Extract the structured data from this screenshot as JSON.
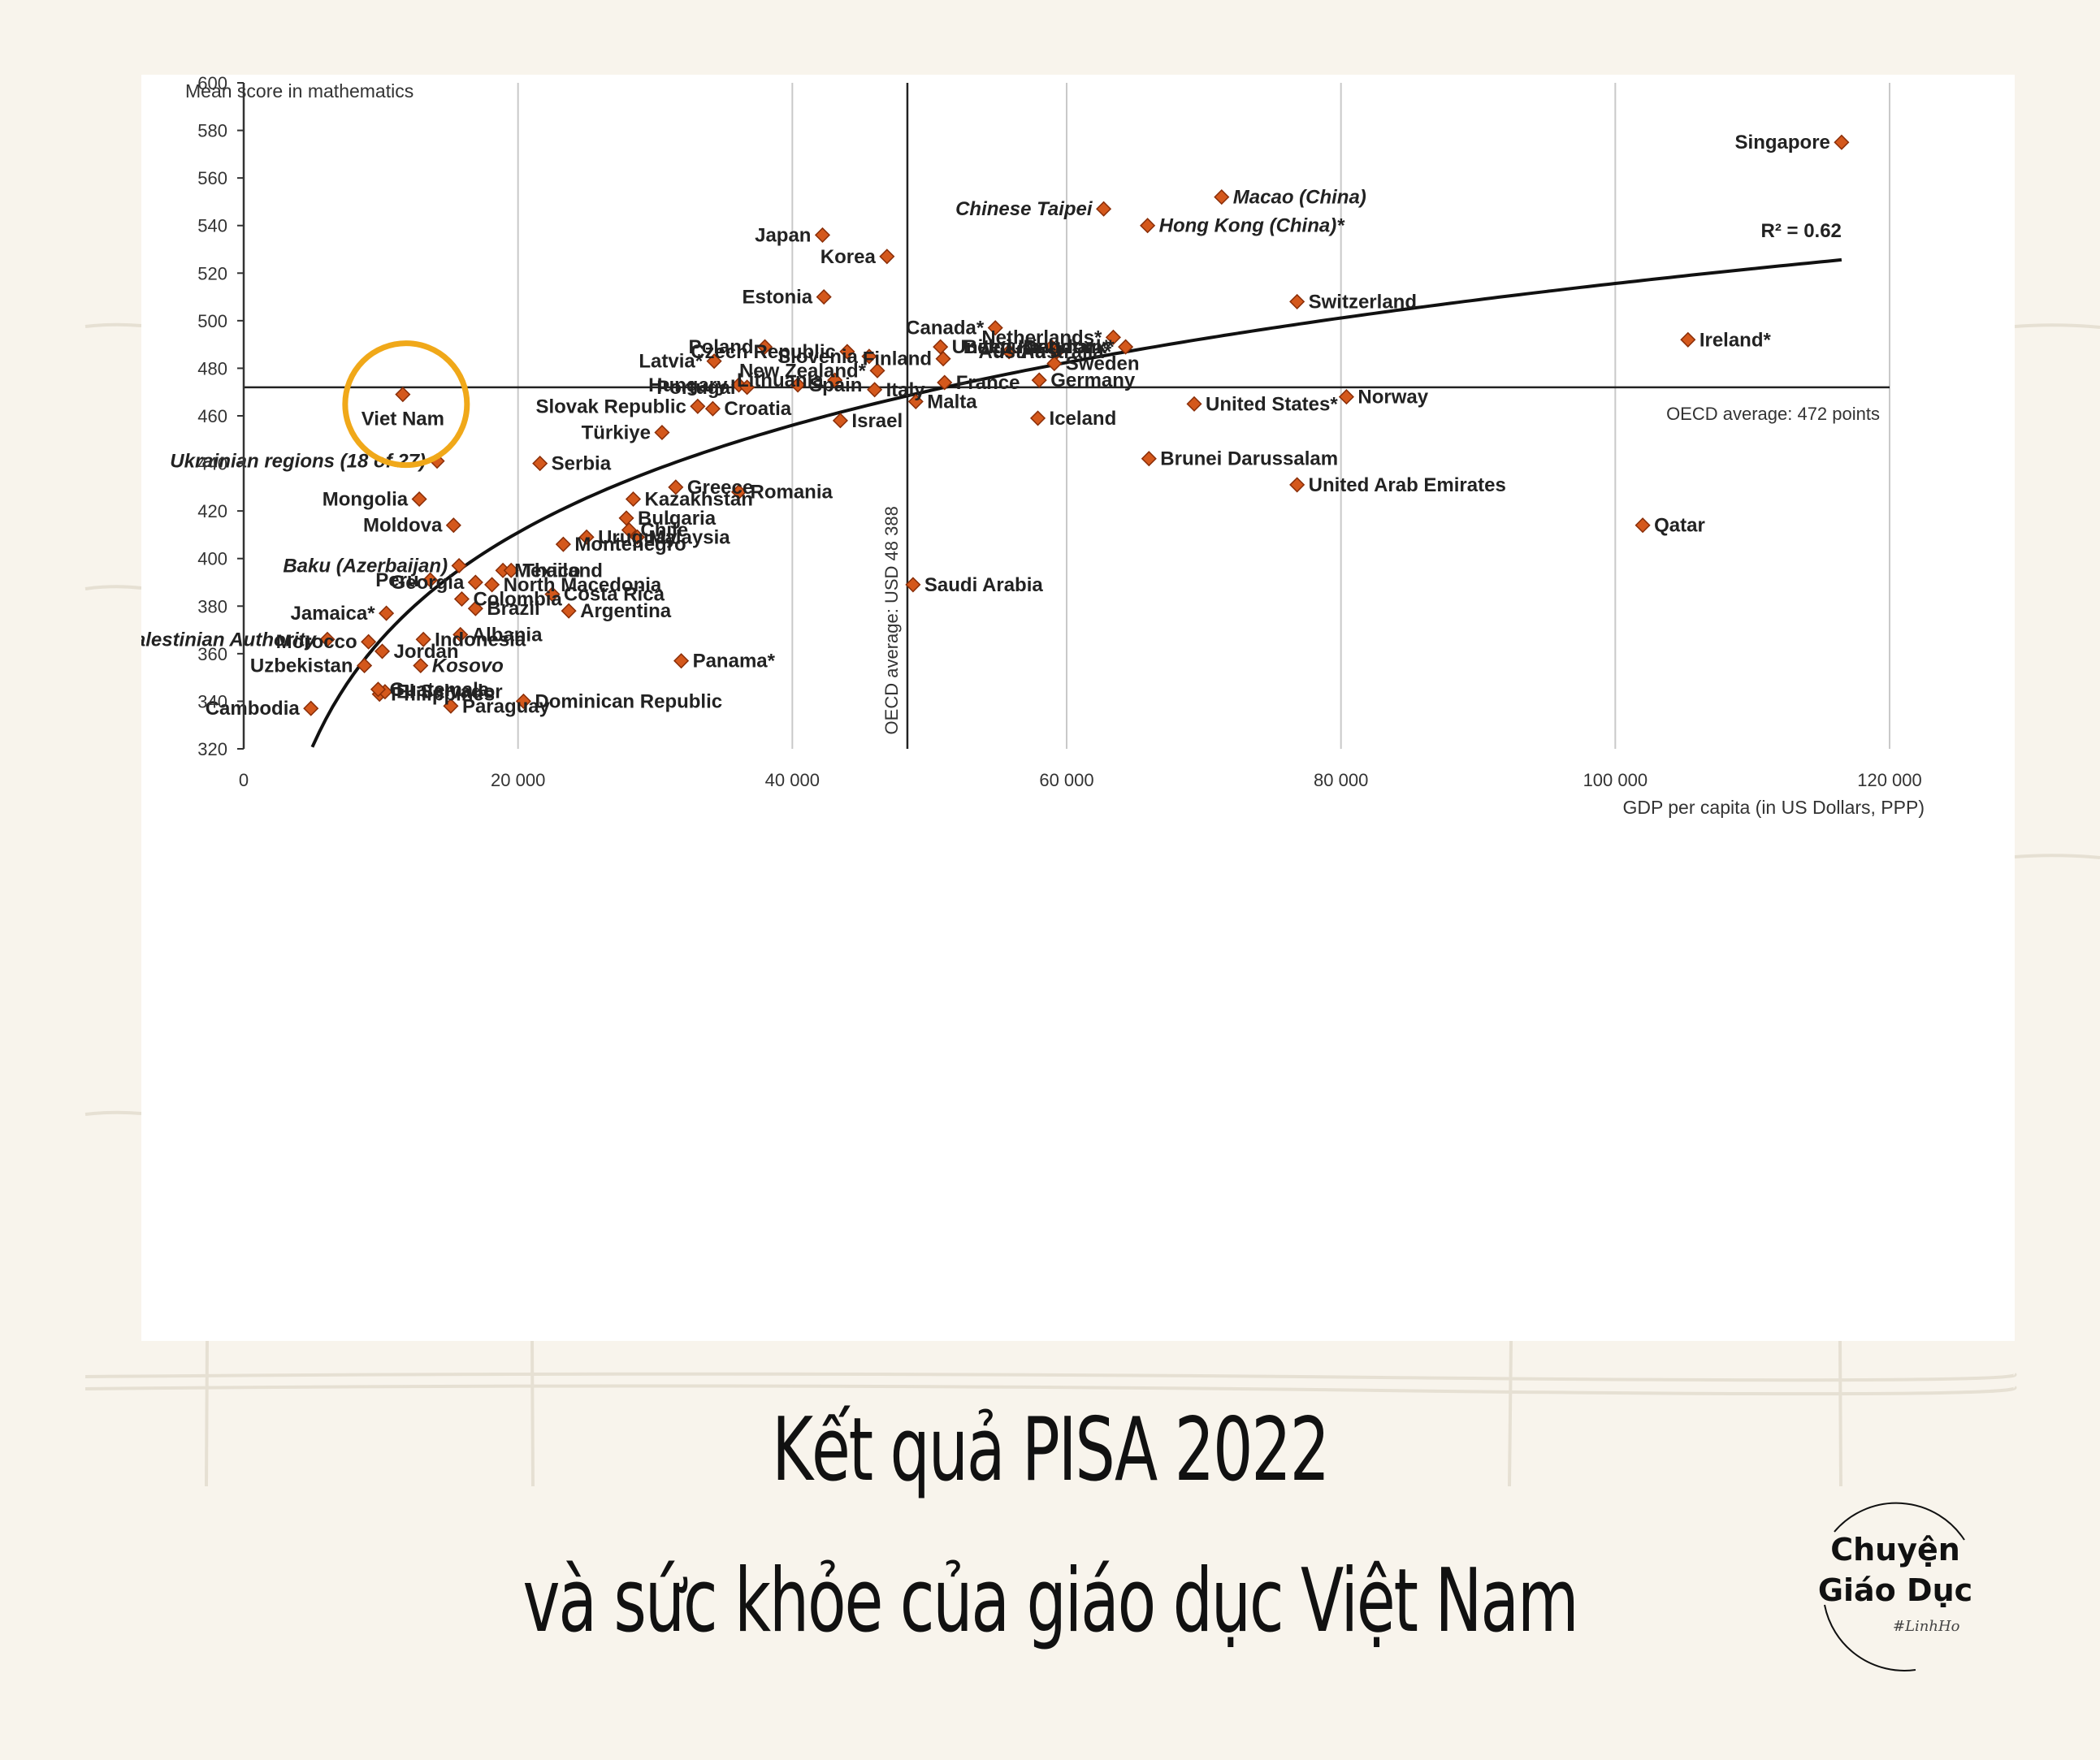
{
  "chart_data": {
    "type": "scatter",
    "ylabel": "Mean score in mathematics",
    "xlabel": "GDP per capita (in US Dollars, PPP)",
    "xlim": [
      0,
      120000
    ],
    "ylim": [
      320,
      600
    ],
    "x_ticks": [
      0,
      20000,
      40000,
      60000,
      80000,
      100000,
      120000
    ],
    "x_tick_labels": [
      "0",
      "20 000",
      "40 000",
      "60 000",
      "80 000",
      "100 000",
      "120 000"
    ],
    "y_ticks": [
      320,
      340,
      360,
      380,
      400,
      420,
      440,
      460,
      480,
      500,
      520,
      540,
      560,
      580,
      600
    ],
    "y_tick_labels": [
      "320",
      "340",
      "360",
      "380",
      "400",
      "420",
      "440",
      "460",
      "480",
      "500",
      "520",
      "540",
      "560",
      "580",
      "600"
    ],
    "grid": "vertical",
    "marker_color": "#d4581c",
    "oecd_average_score": 472,
    "oecd_average_label": "OECD average: 472 points",
    "oecd_average_gdp": 48388,
    "oecd_gdp_label": "OECD average: USD 48 388",
    "r_squared_label": "R² = 0.62",
    "trend": "logarithmic",
    "highlight": "Viet Nam",
    "highlight_color": "#f0a819",
    "points": [
      {
        "label": "Singapore",
        "x": 116500,
        "y": 575
      },
      {
        "label": "Chinese Taipei",
        "x": 62700,
        "y": 547,
        "italic": true
      },
      {
        "label": "Macao (China)",
        "x": 71300,
        "y": 552,
        "italic": true
      },
      {
        "label": "Hong Kong (China)*",
        "x": 65900,
        "y": 540,
        "italic": true
      },
      {
        "label": "Japan",
        "x": 42200,
        "y": 536
      },
      {
        "label": "Korea",
        "x": 46900,
        "y": 527
      },
      {
        "label": "Switzerland",
        "x": 76800,
        "y": 508
      },
      {
        "label": "Ireland*",
        "x": 105300,
        "y": 492
      },
      {
        "label": "Estonia",
        "x": 42300,
        "y": 510
      },
      {
        "label": "New Zealand*",
        "x": 46200,
        "y": 479
      },
      {
        "label": "Czech Republic",
        "x": 44000,
        "y": 487
      },
      {
        "label": "Slovenia",
        "x": 45600,
        "y": 485
      },
      {
        "label": "Poland",
        "x": 38000,
        "y": 489
      },
      {
        "label": "Latvia*",
        "x": 34300,
        "y": 483
      },
      {
        "label": "Lithuania",
        "x": 43100,
        "y": 475
      },
      {
        "label": "Hungary",
        "x": 36100,
        "y": 473
      },
      {
        "label": "Portugal",
        "x": 36700,
        "y": 472
      },
      {
        "label": "Spain",
        "x": 40400,
        "y": 473
      },
      {
        "label": "Italy",
        "x": 46000,
        "y": 471
      },
      {
        "label": "United Kingdom*",
        "x": 50800,
        "y": 489
      },
      {
        "label": "Canada*",
        "x": 54800,
        "y": 497
      },
      {
        "label": "Australia*",
        "x": 55800,
        "y": 487
      },
      {
        "label": "Belgium",
        "x": 58900,
        "y": 489
      },
      {
        "label": "Austria",
        "x": 59300,
        "y": 487
      },
      {
        "label": "Netherlands*",
        "x": 63400,
        "y": 493
      },
      {
        "label": "Denmark*",
        "x": 64300,
        "y": 489
      },
      {
        "label": "Finland",
        "x": 51000,
        "y": 484
      },
      {
        "label": "Sweden",
        "x": 59100,
        "y": 482
      },
      {
        "label": "France",
        "x": 51100,
        "y": 474
      },
      {
        "label": "Germany",
        "x": 58000,
        "y": 475
      },
      {
        "label": "Norway",
        "x": 80400,
        "y": 468
      },
      {
        "label": "Malta",
        "x": 49000,
        "y": 466
      },
      {
        "label": "Iceland",
        "x": 57900,
        "y": 459
      },
      {
        "label": "United States*",
        "x": 69300,
        "y": 465
      },
      {
        "label": "Slovak Republic",
        "x": 33100,
        "y": 464
      },
      {
        "label": "Croatia",
        "x": 34200,
        "y": 463
      },
      {
        "label": "Israel",
        "x": 43500,
        "y": 458
      },
      {
        "label": "Türkiye",
        "x": 30500,
        "y": 453
      },
      {
        "label": "Viet Nam",
        "x": 11600,
        "y": 469
      },
      {
        "label": "Ukrainian regions (18 of 27)",
        "x": 14100,
        "y": 441,
        "italic": true
      },
      {
        "label": "Serbia",
        "x": 21600,
        "y": 440
      },
      {
        "label": "Brunei Darussalam",
        "x": 66000,
        "y": 442
      },
      {
        "label": "United Arab Emirates",
        "x": 76800,
        "y": 431
      },
      {
        "label": "Qatar",
        "x": 102000,
        "y": 414
      },
      {
        "label": "Greece",
        "x": 31500,
        "y": 430
      },
      {
        "label": "Romania",
        "x": 36100,
        "y": 428
      },
      {
        "label": "Kazakhstan",
        "x": 28400,
        "y": 425
      },
      {
        "label": "Mongolia",
        "x": 12800,
        "y": 425
      },
      {
        "label": "Montenegro",
        "x": 23300,
        "y": 406
      },
      {
        "label": "Bulgaria",
        "x": 27900,
        "y": 417
      },
      {
        "label": "Chile",
        "x": 28100,
        "y": 412
      },
      {
        "label": "Malaysia",
        "x": 28700,
        "y": 409
      },
      {
        "label": "Uruguay",
        "x": 25000,
        "y": 409
      },
      {
        "label": "Moldova",
        "x": 15300,
        "y": 414
      },
      {
        "label": "Baku (Azerbaijan)",
        "x": 15700,
        "y": 397,
        "italic": true
      },
      {
        "label": "Georgia",
        "x": 16900,
        "y": 390
      },
      {
        "label": "Mexico",
        "x": 18900,
        "y": 395
      },
      {
        "label": "Thailand",
        "x": 19500,
        "y": 395
      },
      {
        "label": "North Macedonia",
        "x": 18100,
        "y": 389
      },
      {
        "label": "Peru",
        "x": 13600,
        "y": 391
      },
      {
        "label": "Saudi Arabia",
        "x": 48800,
        "y": 389
      },
      {
        "label": "Costa Rica",
        "x": 22500,
        "y": 385
      },
      {
        "label": "Jamaica*",
        "x": 10400,
        "y": 377
      },
      {
        "label": "Brazil",
        "x": 16900,
        "y": 379
      },
      {
        "label": "Argentina",
        "x": 23700,
        "y": 378
      },
      {
        "label": "Colombia",
        "x": 15900,
        "y": 383
      },
      {
        "label": "Morocco",
        "x": 9100,
        "y": 365
      },
      {
        "label": "Jordan",
        "x": 10100,
        "y": 361
      },
      {
        "label": "Palestinian Authority",
        "x": 6100,
        "y": 366,
        "italic": true
      },
      {
        "label": "Albania",
        "x": 15800,
        "y": 368
      },
      {
        "label": "Indonesia",
        "x": 13100,
        "y": 366
      },
      {
        "label": "Uzbekistan",
        "x": 8800,
        "y": 355
      },
      {
        "label": "Kosovo",
        "x": 12900,
        "y": 355,
        "italic": true
      },
      {
        "label": "Panama*",
        "x": 31900,
        "y": 357
      },
      {
        "label": "Philippines",
        "x": 9900,
        "y": 343
      },
      {
        "label": "Paraguay",
        "x": 15100,
        "y": 338
      },
      {
        "label": "Dominican Republic",
        "x": 20400,
        "y": 340
      },
      {
        "label": "El Salvador",
        "x": 10300,
        "y": 344
      },
      {
        "label": "Guatemala",
        "x": 9800,
        "y": 345
      },
      {
        "label": "Cambodia",
        "x": 4900,
        "y": 337
      }
    ]
  },
  "headline": {
    "line1": "Kết quả PISA 2022",
    "line2": "và sức khỏe của giáo dục Việt Nam"
  },
  "brand": {
    "line1": "Chuyện",
    "line2": "Giáo Dục",
    "signature": "#LinhHo"
  }
}
